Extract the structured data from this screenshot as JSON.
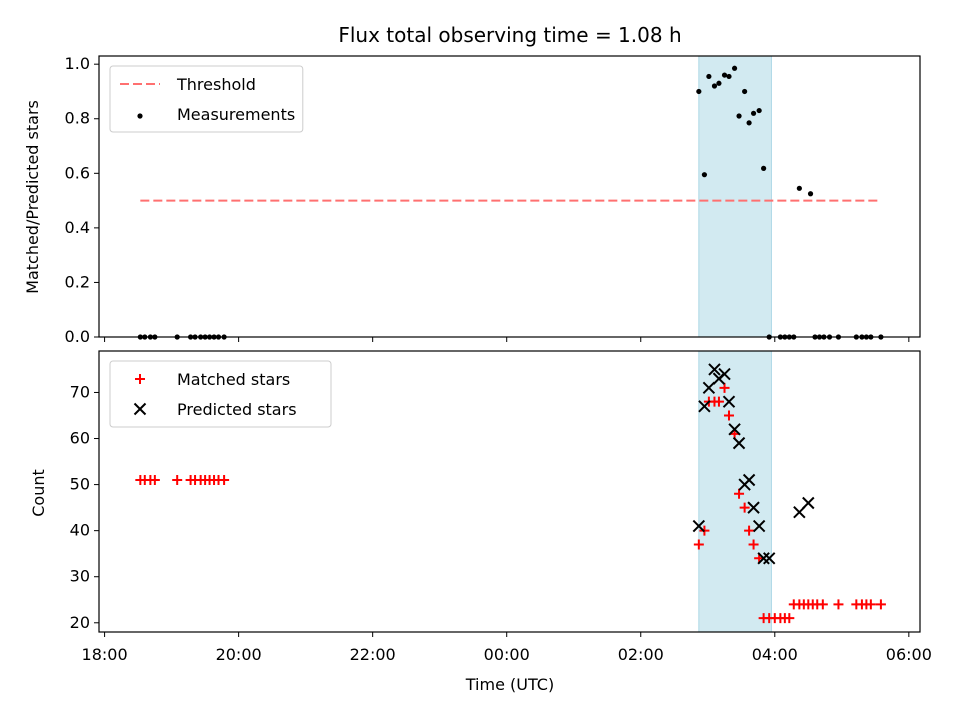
{
  "chart_data": [
    {
      "type": "scatter",
      "title": "Flux total observing time = 1.08 h",
      "ylabel": "Matched/Predicted stars",
      "xlim": [
        "17:55",
        "06:10"
      ],
      "ylim": [
        0,
        1.03
      ],
      "yticks": [
        0.0,
        0.2,
        0.4,
        0.6,
        0.8,
        1.0
      ],
      "ytick_labels": [
        "0.0",
        "0.2",
        "0.4",
        "0.6",
        "0.8",
        "1.0"
      ],
      "grid": false,
      "legend_position": "top-left",
      "shaded_interval": {
        "from": "02:52",
        "to": "03:57",
        "color": "#add8e6"
      },
      "series": [
        {
          "name": "Threshold",
          "style": "dashed-line",
          "color": "#ff7070",
          "x": [
            "18:32",
            "05:33"
          ],
          "y": [
            0.5,
            0.5
          ]
        },
        {
          "name": "Measurements",
          "style": "dot",
          "color": "#000000",
          "x": [
            "18:32",
            "18:36",
            "18:41",
            "18:45",
            "19:05",
            "19:17",
            "19:21",
            "19:26",
            "19:30",
            "19:34",
            "19:38",
            "19:42",
            "19:47",
            "02:52",
            "02:57",
            "03:01",
            "03:06",
            "03:10",
            "03:15",
            "03:19",
            "03:24",
            "03:28",
            "03:33",
            "03:37",
            "03:41",
            "03:46",
            "03:50",
            "03:55",
            "04:05",
            "04:09",
            "04:13",
            "04:17",
            "04:22",
            "04:32",
            "04:36",
            "04:40",
            "04:44",
            "04:49",
            "04:57",
            "05:13",
            "05:18",
            "05:22",
            "05:26",
            "05:35"
          ],
          "y": [
            0,
            0,
            0,
            0,
            0,
            0,
            0,
            0,
            0,
            0,
            0,
            0,
            0,
            0.9,
            0.595,
            0.955,
            0.92,
            0.93,
            0.96,
            0.955,
            0.985,
            0.81,
            0.9,
            0.785,
            0.82,
            0.83,
            0.618,
            0,
            0,
            0,
            0,
            0,
            0.545,
            0.525,
            0,
            0,
            0,
            0,
            0,
            0,
            0,
            0,
            0,
            0
          ]
        }
      ]
    },
    {
      "type": "scatter",
      "xlabel": "Time (UTC)",
      "ylabel": "Count",
      "xlim": [
        "17:55",
        "06:10"
      ],
      "ylim": [
        18,
        79
      ],
      "yticks": [
        20,
        30,
        40,
        50,
        60,
        70
      ],
      "ytick_labels": [
        "20",
        "30",
        "40",
        "50",
        "60",
        "70"
      ],
      "xticks": [
        "18:00",
        "20:00",
        "22:00",
        "00:00",
        "02:00",
        "04:00",
        "06:00"
      ],
      "xtick_labels": [
        "18:00",
        "20:00",
        "22:00",
        "00:00",
        "02:00",
        "04:00",
        "06:00"
      ],
      "grid": false,
      "legend_position": "top-left",
      "shaded_interval": {
        "from": "02:52",
        "to": "03:57",
        "color": "#add8e6"
      },
      "series": [
        {
          "name": "Matched stars",
          "style": "plus",
          "color": "#ff0000",
          "x": [
            "18:32",
            "18:36",
            "18:41",
            "18:45",
            "19:05",
            "19:17",
            "19:21",
            "19:26",
            "19:30",
            "19:34",
            "19:38",
            "19:42",
            "19:47",
            "02:52",
            "02:57",
            "03:01",
            "03:06",
            "03:10",
            "03:15",
            "03:19",
            "03:24",
            "03:28",
            "03:33",
            "03:37",
            "03:41",
            "03:46",
            "03:50",
            "03:55",
            "04:00",
            "04:05",
            "04:09",
            "04:13",
            "04:17",
            "04:22",
            "04:26",
            "04:30",
            "04:34",
            "04:38",
            "04:43",
            "04:57",
            "05:13",
            "05:18",
            "05:22",
            "05:26",
            "05:35"
          ],
          "y": [
            51,
            51,
            51,
            51,
            51,
            51,
            51,
            51,
            51,
            51,
            51,
            51,
            51,
            37,
            40,
            68,
            68,
            68,
            71,
            65,
            61,
            48,
            45,
            40,
            37,
            34,
            21,
            21,
            21,
            21,
            21,
            21,
            24,
            24,
            24,
            24,
            24,
            24,
            24,
            24,
            24,
            24,
            24,
            24,
            24
          ]
        },
        {
          "name": "Predicted stars",
          "style": "x",
          "color": "#000000",
          "x": [
            "02:52",
            "02:57",
            "03:01",
            "03:06",
            "03:10",
            "03:15",
            "03:19",
            "03:24",
            "03:28",
            "03:33",
            "03:37",
            "03:41",
            "03:46",
            "03:50",
            "03:55",
            "04:22",
            "04:30"
          ],
          "y": [
            41,
            67,
            71,
            75,
            73,
            74,
            68,
            62,
            59,
            50,
            51,
            45,
            41,
            34,
            34,
            44,
            46
          ]
        }
      ]
    }
  ]
}
